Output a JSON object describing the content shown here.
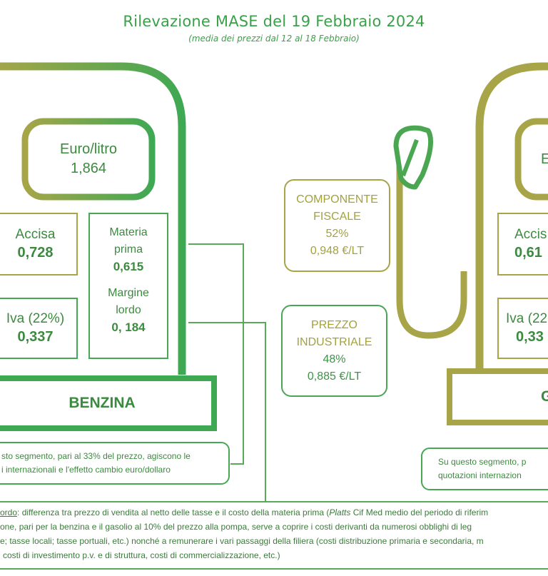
{
  "header": {
    "title": "Rilevazione MASE del 19 Febbraio 2024",
    "subtitle": "(media dei prezzi dal 12 al 18 Febbraio)"
  },
  "benzina": {
    "price_label": "Euro/litro",
    "price_value": "1,864",
    "accisa_label": "Accisa",
    "accisa_value": "0,728",
    "iva_label": "Iva (22%)",
    "iva_value": "0,337",
    "materia_label_1": "Materia",
    "materia_label_2": "prima",
    "materia_value": "0,615",
    "margine_label_1": "Margine",
    "margine_label_2": "lordo",
    "margine_value": "0, 184",
    "name": "BENZINA",
    "note_line_1": "sto segmento, pari al 33% del prezzo, agiscono le",
    "note_line_2": "i internazionali e l'effetto cambio euro/dollaro"
  },
  "middle": {
    "fiscale_line_1": "COMPONENTE",
    "fiscale_line_2": "FISCALE",
    "fiscale_pct": "52%",
    "fiscale_value": "0,948 €/LT",
    "industriale_line_1": "PREZZO",
    "industriale_line_2": "INDUSTRIALE",
    "industriale_pct": "48%",
    "industriale_value": "0,885 €/LT"
  },
  "gasolio": {
    "price_label": "E",
    "accisa_label": "Accis",
    "accisa_value": "0,61",
    "iva_label": "Iva (22",
    "iva_value": "0,33",
    "name": "G",
    "note_line_1": "Su questo segmento, p",
    "note_line_2": "quotazioni internazion"
  },
  "footer": {
    "line_1_term": "ordo",
    "line_1_a": ": differenza tra prezzo di vendita al netto delle tasse e il costo della materia prima (",
    "line_1_platts": "Platts",
    "line_1_b": " Cif Med medio del periodo di riferim",
    "line_2": "one, pari per la benzina e il gasolio al 10% del prezzo alla pompa, serve a coprire i costi derivanti da numerosi obblighi di leg",
    "line_3": "e; tasse locali; tasse portuali, etc.) nonché a remunerare i vari passaggi della filiera (costi distribuzione primaria e secondaria, m",
    "line_4": "costi di investimento p.v. e di struttura, costi di commercializzazione, etc.)"
  },
  "colors": {
    "green": "#48a754",
    "olive": "#a7a548",
    "text_green": "#3c8a3f"
  }
}
